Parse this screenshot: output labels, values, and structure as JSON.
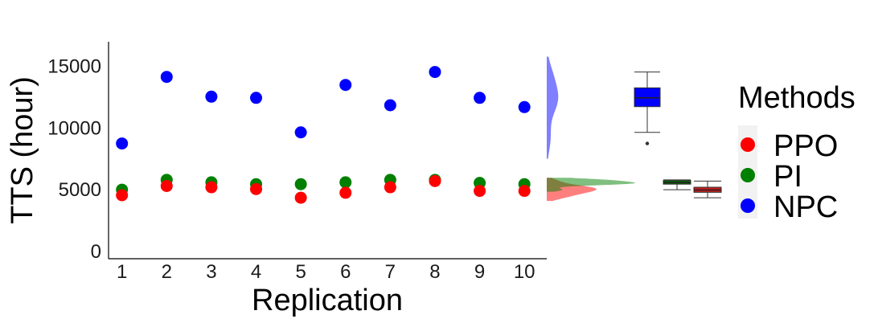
{
  "chart_data": {
    "type": "scatter",
    "xlabel": "Replication",
    "ylabel": "TTS (hour)",
    "x": [
      1,
      2,
      3,
      4,
      5,
      6,
      7,
      8,
      9,
      10
    ],
    "xticks": [
      "1",
      "2",
      "3",
      "4",
      "5",
      "6",
      "7",
      "8",
      "9",
      "10"
    ],
    "yticks": [
      "0",
      "5000",
      "10000",
      "15000"
    ],
    "xlim": [
      0.7,
      10.5
    ],
    "ylim": [
      -600,
      17000
    ],
    "grid": false,
    "legend": {
      "title": "Methods",
      "position": "right"
    },
    "series": [
      {
        "name": "PPO",
        "color": "#ff0000",
        "values": [
          4550,
          5300,
          5200,
          5050,
          4350,
          4750,
          5200,
          5700,
          4900,
          4900
        ]
      },
      {
        "name": "PI",
        "color": "#008000",
        "values": [
          5000,
          5800,
          5600,
          5450,
          5450,
          5600,
          5800,
          5800,
          5550,
          5450
        ]
      },
      {
        "name": "NPC",
        "color": "#0000ff",
        "values": [
          8750,
          14150,
          12550,
          12450,
          9650,
          13500,
          11850,
          14550,
          12450,
          11700
        ]
      }
    ],
    "marginal_density": {
      "type": "density",
      "orientation": "vertical",
      "series": [
        "PPO",
        "PI",
        "NPC"
      ]
    },
    "marginal_boxplot": {
      "type": "box",
      "order": [
        "NPC",
        "PI",
        "PPO"
      ]
    }
  }
}
